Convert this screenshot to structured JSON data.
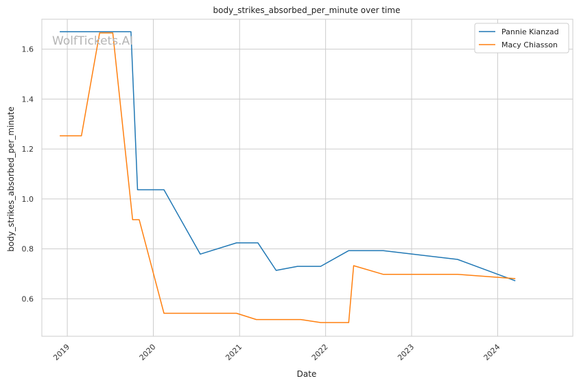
{
  "chart_data": {
    "type": "line",
    "title": "body_strikes_absorbed_per_minute over time",
    "xlabel": "Date",
    "ylabel": "body_strikes_absorbed_per_minute",
    "watermark": "WolfTickets.AI",
    "xlim": [
      "2018-09-15",
      "2024-11-15"
    ],
    "ylim": [
      0.45,
      1.72
    ],
    "x_ticks": [
      "2019",
      "2020",
      "2021",
      "2022",
      "2023",
      "2024"
    ],
    "y_ticks": [
      "0.6",
      "0.8",
      "1.0",
      "1.2",
      "1.4",
      "1.6"
    ],
    "grid": true,
    "legend_position": "top-right",
    "series": [
      {
        "name": "Pannie Kianzad",
        "color": "#1f77b4",
        "points": [
          [
            "2018-11-30",
            1.67
          ],
          [
            "2019-09-28",
            1.67
          ],
          [
            "2019-10-26",
            1.037
          ],
          [
            "2020-02-15",
            1.037
          ],
          [
            "2020-07-18",
            0.779
          ],
          [
            "2020-12-19",
            0.824
          ],
          [
            "2021-03-20",
            0.824
          ],
          [
            "2021-06-05",
            0.714
          ],
          [
            "2021-09-04",
            0.73
          ],
          [
            "2021-12-11",
            0.73
          ],
          [
            "2022-04-09",
            0.793
          ],
          [
            "2022-09-03",
            0.793
          ],
          [
            "2023-07-15",
            0.758
          ],
          [
            "2024-03-16",
            0.672
          ]
        ]
      },
      {
        "name": "Macy Chiasson",
        "color": "#ff7f0e",
        "points": [
          [
            "2018-11-30",
            1.253
          ],
          [
            "2019-03-02",
            1.253
          ],
          [
            "2019-05-18",
            1.665
          ],
          [
            "2019-07-13",
            1.665
          ],
          [
            "2019-10-05",
            0.917
          ],
          [
            "2019-11-02",
            0.917
          ],
          [
            "2020-02-15",
            0.542
          ],
          [
            "2020-12-19",
            0.542
          ],
          [
            "2021-03-13",
            0.517
          ],
          [
            "2021-09-18",
            0.517
          ],
          [
            "2021-12-11",
            0.505
          ],
          [
            "2022-04-09",
            0.505
          ],
          [
            "2022-04-30",
            0.733
          ],
          [
            "2022-09-03",
            0.698
          ],
          [
            "2023-07-15",
            0.698
          ],
          [
            "2024-03-16",
            0.681
          ]
        ]
      }
    ]
  }
}
